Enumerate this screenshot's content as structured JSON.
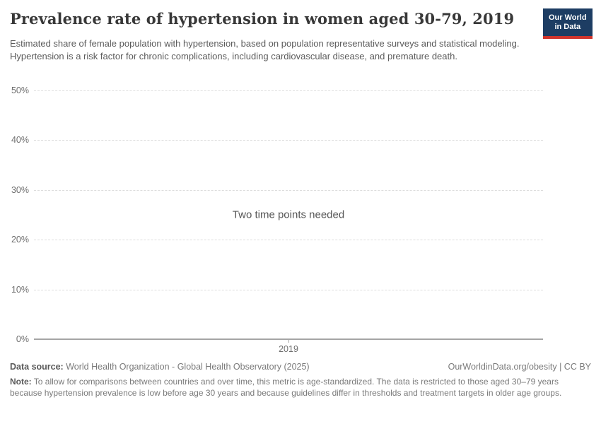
{
  "header": {
    "title": "Prevalence rate of hypertension in women aged 30-79, 2019",
    "subtitle": "Estimated share of female population with hypertension, based on population representative surveys and statistical modeling. Hypertension is a risk factor for chronic complications, including cardiovascular disease, and premature death.",
    "logo": {
      "line1": "Our World",
      "line2": "in Data",
      "bg_color": "#1d3d63",
      "stripe_color": "#d0342c"
    }
  },
  "chart_data": {
    "type": "line",
    "title": "Prevalence rate of hypertension in women aged 30-79, 2019",
    "message": "Two time points needed",
    "series": [],
    "xticks": [
      "2019"
    ],
    "yticks": [
      0,
      10,
      20,
      30,
      40,
      50
    ],
    "y_tick_suffix": "%",
    "ylim": [
      0,
      50
    ],
    "grid": "horizontal-dashed",
    "xlabel": "",
    "ylabel": "",
    "legend": "none"
  },
  "footer": {
    "datasource_label": "Data source:",
    "datasource": "World Health Organization - Global Health Observatory (2025)",
    "license": "OurWorldinData.org/obesity | CC BY",
    "note_label": "Note:",
    "note": "To allow for comparisons between countries and over time, this metric is age-standardized. The data is restricted to those aged 30–79 years because hypertension prevalence is low before age 30 years and because guidelines differ in thresholds and treatment targets in older age groups."
  }
}
